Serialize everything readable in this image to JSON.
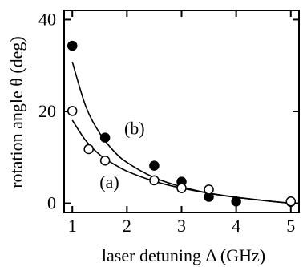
{
  "chart_data": {
    "type": "scatter",
    "xlabel": "laser detuning Δ (GHz)",
    "ylabel": "rotation angle θ (deg)",
    "xlim": [
      0.85,
      5.15
    ],
    "ylim": [
      -2,
      42
    ],
    "x_ticks": [
      1,
      2,
      3,
      4,
      5
    ],
    "y_ticks": [
      0,
      20,
      40
    ],
    "x_tick_labels": [
      "1",
      "2",
      "3",
      "4",
      "5"
    ],
    "y_tick_labels": [
      "0",
      "20",
      "40"
    ],
    "grid": false,
    "series": [
      {
        "name": "(b)",
        "marker": "filled-circle",
        "points": [
          {
            "x": 1.0,
            "y": 34.3
          },
          {
            "x": 1.6,
            "y": 14.3
          },
          {
            "x": 2.5,
            "y": 8.2
          },
          {
            "x": 3.0,
            "y": 4.7
          },
          {
            "x": 3.5,
            "y": 1.4
          },
          {
            "x": 4.0,
            "y": 0.4
          },
          {
            "x": 5.0,
            "y": 0.3
          }
        ],
        "fit_curve": [
          {
            "x": 1.0,
            "y": 30.8
          },
          {
            "x": 1.25,
            "y": 21.0
          },
          {
            "x": 1.5,
            "y": 15.3
          },
          {
            "x": 1.75,
            "y": 11.5
          },
          {
            "x": 2.0,
            "y": 8.9
          },
          {
            "x": 2.5,
            "y": 5.6
          },
          {
            "x": 3.0,
            "y": 3.6
          },
          {
            "x": 3.5,
            "y": 2.2
          },
          {
            "x": 4.0,
            "y": 1.3
          },
          {
            "x": 4.5,
            "y": 0.6
          },
          {
            "x": 5.0,
            "y": 0.0
          }
        ]
      },
      {
        "name": "(a)",
        "marker": "open-circle",
        "points": [
          {
            "x": 1.0,
            "y": 20.1
          },
          {
            "x": 1.3,
            "y": 11.8
          },
          {
            "x": 1.6,
            "y": 9.3
          },
          {
            "x": 2.5,
            "y": 5.0
          },
          {
            "x": 3.0,
            "y": 3.3
          },
          {
            "x": 3.5,
            "y": 3.0
          },
          {
            "x": 5.0,
            "y": 0.4
          }
        ],
        "fit_curve": [
          {
            "x": 1.0,
            "y": 18.1
          },
          {
            "x": 1.25,
            "y": 13.6
          },
          {
            "x": 1.5,
            "y": 10.6
          },
          {
            "x": 1.75,
            "y": 8.6
          },
          {
            "x": 2.0,
            "y": 7.0
          },
          {
            "x": 2.5,
            "y": 4.8
          },
          {
            "x": 3.0,
            "y": 3.3
          },
          {
            "x": 3.5,
            "y": 2.2
          },
          {
            "x": 4.0,
            "y": 1.3
          },
          {
            "x": 4.5,
            "y": 0.6
          },
          {
            "x": 5.0,
            "y": 0.0
          }
        ]
      }
    ],
    "annotations": [
      {
        "text": "(b)",
        "x": 1.95,
        "y": 15.0
      },
      {
        "text": "(a)",
        "x": 1.5,
        "y": 3.3
      }
    ]
  }
}
